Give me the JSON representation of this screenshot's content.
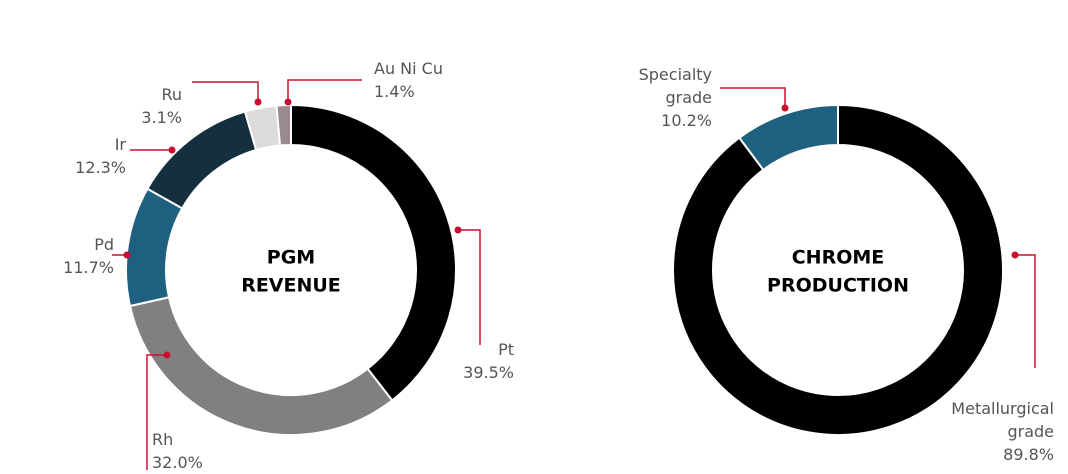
{
  "chart_data": [
    {
      "type": "donut",
      "center_label": [
        "PGM",
        "REVENUE"
      ],
      "categories": [
        "Pt",
        "Rh",
        "Pd",
        "Ir",
        "Ru",
        "Au Ni Cu"
      ],
      "values": [
        39.5,
        32.0,
        11.7,
        12.3,
        3.1,
        1.4
      ],
      "value_labels": [
        "39.5%",
        "32.0%",
        "11.7%",
        "12.3%",
        "3.1%",
        "1.4%"
      ],
      "colors": [
        "#000000",
        "#808080",
        "#1f5f7f",
        "#14303f",
        "#dcdcdc",
        "#9a8a90"
      ]
    },
    {
      "type": "donut",
      "center_label": [
        "CHROME",
        "PRODUCTION"
      ],
      "categories": [
        "Metallurgical grade",
        "Specialty grade"
      ],
      "values": [
        89.8,
        10.2
      ],
      "value_labels": [
        "89.8%",
        "10.2%"
      ],
      "colors": [
        "#000000",
        "#1f5f7f"
      ]
    }
  ]
}
